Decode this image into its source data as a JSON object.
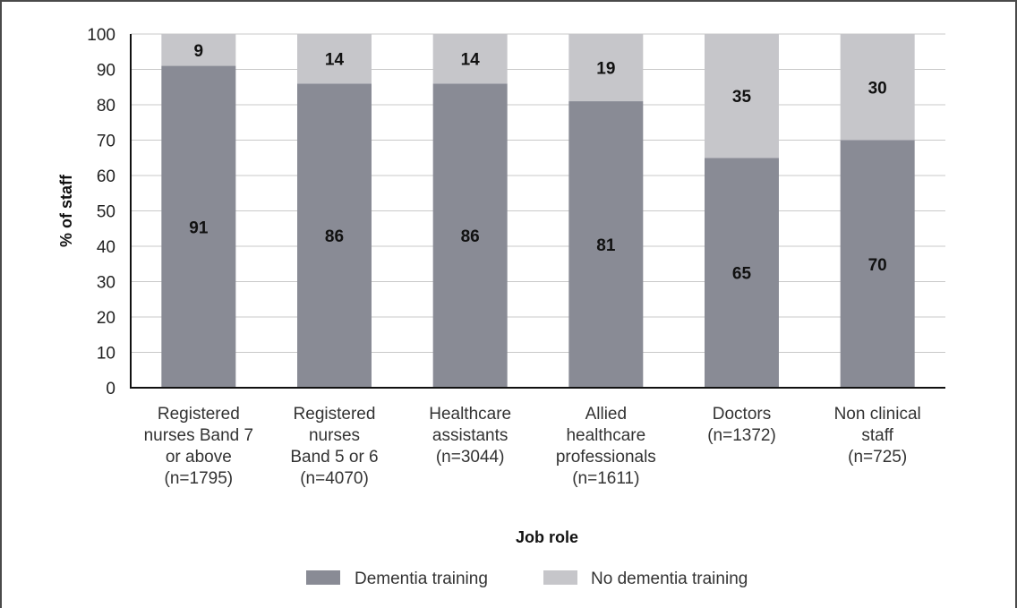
{
  "chart_data": {
    "type": "bar",
    "stacked": true,
    "title": "",
    "xlabel": "Job role",
    "ylabel": "% of staff",
    "ylim": [
      0,
      100
    ],
    "yticks": [
      0,
      10,
      20,
      30,
      40,
      50,
      60,
      70,
      80,
      90,
      100
    ],
    "grid": true,
    "legend_position": "bottom",
    "categories": [
      [
        "Registered",
        "nurses Band 7",
        "or above",
        "(n=1795)"
      ],
      [
        "Registered",
        "nurses",
        "Band 5 or 6",
        "(n=4070)"
      ],
      [
        "Healthcare",
        "assistants",
        "(n=3044)"
      ],
      [
        "Allied",
        "healthcare",
        "professionals",
        "(n=1611)"
      ],
      [
        "Doctors",
        "(n=1372)"
      ],
      [
        "Non clinical",
        "staff",
        "(n=725)"
      ]
    ],
    "series": [
      {
        "name": "Dementia training",
        "color": "#898b95",
        "values": [
          91,
          86,
          86,
          81,
          65,
          70
        ]
      },
      {
        "name": "No dementia training",
        "color": "#c6c6ca",
        "values": [
          9,
          14,
          14,
          19,
          35,
          30
        ]
      }
    ]
  }
}
